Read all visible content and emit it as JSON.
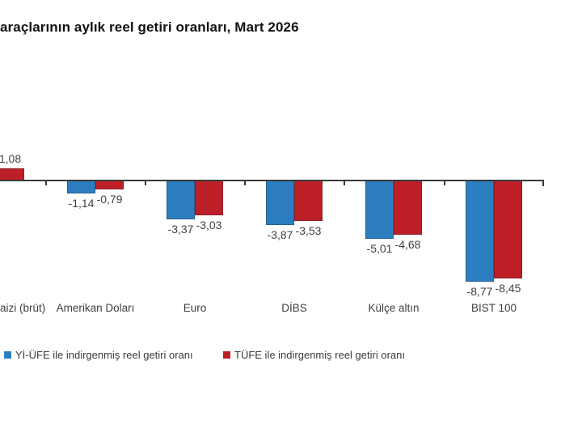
{
  "title": "araçlarının aylık reel getiri oranları, Mart 2026",
  "colors": {
    "axis": "#3a3a3a",
    "title_text": "#111111",
    "label_text": "#3f3f3f",
    "background": "#ffffff",
    "series_blue": "#2d7ec0",
    "series_red": "#bd1f26"
  },
  "chart_data": {
    "type": "bar",
    "title": "araçlarının aylık reel getiri oranları, Mart 2026",
    "categories": [
      "aizi (brüt)",
      "Amerikan Doları",
      "Euro",
      "DİBS",
      "Külçe altın",
      "BIST 100"
    ],
    "series": [
      {
        "name": "Yİ-ÜFE ile indirgenmiş reel getiri oranı",
        "color": "#2d7ec0",
        "values": [
          null,
          -1.14,
          -3.37,
          -3.87,
          -5.01,
          -8.77
        ],
        "value_labels": [
          "",
          "-1,14",
          "-3,37",
          "-3,87",
          "-5,01",
          "-8,77"
        ]
      },
      {
        "name": "TÜFE ile indirgenmiş reel getiri oranı",
        "color": "#bd1f26",
        "values": [
          1.08,
          -0.79,
          -3.03,
          -3.53,
          -4.68,
          -8.45
        ],
        "value_labels": [
          "1,08",
          "-0,79",
          "-3,03",
          "-3,53",
          "-4,68",
          "-8,45"
        ]
      }
    ],
    "xlabel": "",
    "ylabel": "",
    "ylim": [
      -9.5,
      1.5
    ],
    "grid": false,
    "legend_position": "bottom",
    "decimal_separator": ",",
    "clipped_left_edge": true
  }
}
